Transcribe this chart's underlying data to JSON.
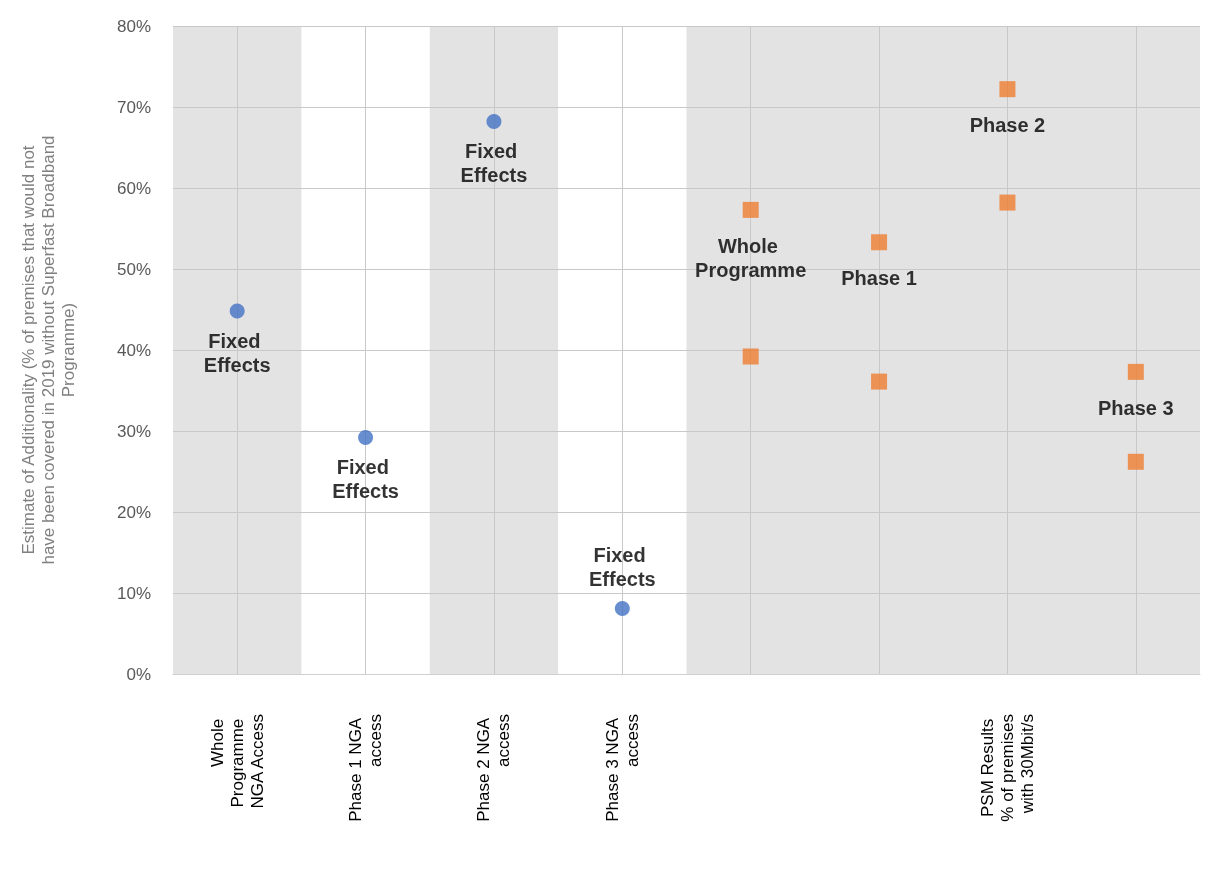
{
  "chart_data": {
    "type": "scatter",
    "ylabel": "Estimate of Additionality (% of premises that would not have been covered in 2019 without Superfast Broadband Programme)",
    "categories": [
      "Whole Programme NGA Access",
      "Phase 1 NGA access",
      "Phase 2 NGA access",
      "Phase 3 NGA access",
      null,
      null,
      "PSM Results % of premises with 30Mbit/s",
      null
    ],
    "series": [
      {
        "name": "Fixed Effects",
        "color": "#4472c4",
        "marker": "circle",
        "values": [
          44.8,
          29.2,
          68.2,
          8.1,
          null,
          null,
          null,
          null
        ]
      },
      {
        "name": "Whole Programme",
        "color": "#ed7d31",
        "marker": "square",
        "values": [
          null,
          null,
          null,
          null,
          57.3,
          null,
          null,
          null
        ]
      },
      {
        "color": "#ed7d31",
        "marker": "square",
        "values": [
          null,
          null,
          null,
          null,
          39.2,
          null,
          null,
          null
        ]
      },
      {
        "name": "Phase 1",
        "color": "#ed7d31",
        "marker": "square",
        "values": [
          null,
          null,
          null,
          null,
          null,
          53.3,
          null,
          null
        ]
      },
      {
        "color": "#ed7d31",
        "marker": "square",
        "values": [
          null,
          null,
          null,
          null,
          null,
          36.1,
          null,
          null
        ]
      },
      {
        "name": "Phase 2",
        "color": "#ed7d31",
        "marker": "square",
        "values": [
          null,
          null,
          null,
          null,
          null,
          null,
          72.2,
          null
        ]
      },
      {
        "color": "#ed7d31",
        "marker": "square",
        "values": [
          null,
          null,
          null,
          null,
          null,
          null,
          58.2,
          null
        ]
      },
      {
        "name": "Phase 3",
        "color": "#ed7d31",
        "marker": "square",
        "values": [
          null,
          null,
          null,
          null,
          null,
          null,
          null,
          37.3
        ]
      },
      {
        "color": "#ed7d31",
        "marker": "square",
        "values": [
          null,
          null,
          null,
          null,
          null,
          null,
          null,
          26.2
        ]
      }
    ],
    "bands": [
      {
        "axis": "x",
        "from": "Phase 1 NGA access",
        "to": "Phase 1 NGA access",
        "color": "#ffffff"
      },
      {
        "axis": "x",
        "from": "Phase 3 NGA access",
        "to": "Phase 3 NGA access",
        "color": "#ffffff"
      }
    ],
    "ylim": [
      0,
      80
    ],
    "yticks": [
      {
        "value": 0,
        "label": "0%"
      },
      {
        "value": 10,
        "label": "10%"
      },
      {
        "value": 20,
        "label": "20%"
      },
      {
        "value": 30,
        "label": "30%"
      },
      {
        "value": 40,
        "label": "40%"
      },
      {
        "value": 50,
        "label": "50%"
      },
      {
        "value": 60,
        "label": "60%"
      },
      {
        "value": 70,
        "label": "70%"
      },
      {
        "value": 80,
        "label": "80%"
      }
    ],
    "grid": true
  }
}
